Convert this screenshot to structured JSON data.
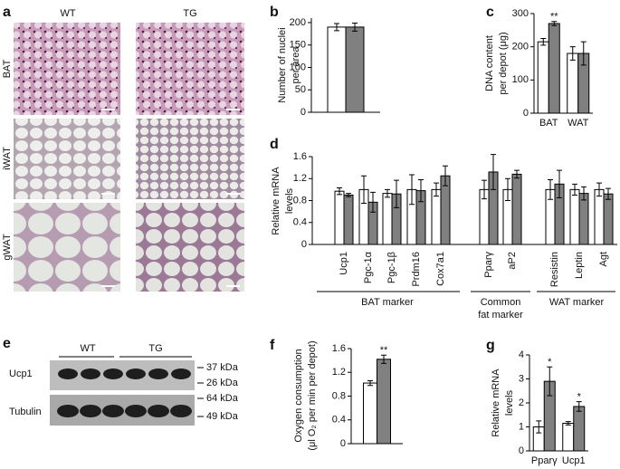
{
  "panel_a": {
    "letter": "a",
    "columns": [
      "WT",
      "TG"
    ],
    "rows": [
      "BAT",
      "iWAT",
      "gWAT"
    ]
  },
  "panel_e": {
    "letter": "e",
    "groups": [
      "WT",
      "TG"
    ],
    "rows": [
      "Ucp1",
      "Tubulin"
    ],
    "markers": [
      "37 kDa",
      "26 kDa",
      "64 kDa",
      "49 kDa"
    ]
  },
  "chart_data": [
    {
      "type": "bar",
      "panel": "b",
      "ylabel": [
        "Number of nuclei",
        "per area"
      ],
      "categories": [
        null
      ],
      "series": [
        {
          "color": "#ffffff",
          "values": [
            190
          ],
          "errors": [
            8
          ]
        },
        {
          "color": "#808080",
          "values": [
            190
          ],
          "errors": [
            9
          ]
        }
      ],
      "ylim": [
        0,
        210
      ],
      "yticks": [
        0,
        50,
        100,
        150,
        200
      ]
    },
    {
      "type": "bar",
      "panel": "c",
      "ylabel": [
        "DNA content",
        "per depot (μg)"
      ],
      "categories": [
        "BAT",
        "WAT"
      ],
      "series": [
        {
          "color": "#ffffff",
          "values": [
            215,
            180
          ],
          "errors": [
            10,
            20
          ]
        },
        {
          "color": "#808080",
          "values": [
            270,
            180
          ],
          "errors": [
            6,
            35
          ],
          "markers": [
            "**",
            null
          ]
        }
      ],
      "ylim": [
        0,
        300
      ],
      "yticks": [
        0,
        100,
        200,
        300
      ]
    },
    {
      "type": "bar",
      "panel": "d",
      "ylabel": [
        "Relative mRNA",
        "levels"
      ],
      "categories": [
        "Ucp1",
        "Pgc-1α",
        "Pgc-1β",
        "Prdm16",
        "Cox7a1",
        "Pparγ",
        "aP2",
        "Resistin",
        "Leptin",
        "Agt"
      ],
      "groups": [
        [
          "BAT marker"
        ],
        [
          "Common",
          "fat marker"
        ],
        [
          "WAT marker"
        ]
      ],
      "series": [
        {
          "color": "#ffffff",
          "values": [
            0.97,
            1.0,
            0.93,
            1.0,
            1.0,
            1.0,
            1.0,
            1.0,
            1.0,
            1.0
          ],
          "errors": [
            0.06,
            0.25,
            0.07,
            0.27,
            0.12,
            0.17,
            0.2,
            0.18,
            0.1,
            0.12
          ]
        },
        {
          "color": "#808080",
          "values": [
            0.9,
            0.77,
            0.92,
            0.98,
            1.25,
            1.32,
            1.28,
            1.1,
            0.93,
            0.92
          ],
          "errors": [
            0.03,
            0.18,
            0.25,
            0.2,
            0.18,
            0.32,
            0.07,
            0.25,
            0.12,
            0.1
          ]
        }
      ],
      "ylim": [
        0,
        1.6
      ],
      "yticks": [
        0,
        0.4,
        0.8,
        1.2,
        1.6
      ]
    },
    {
      "type": "bar",
      "panel": "f",
      "ylabel": [
        "Oxygen consumption",
        "(μl O₂ per min per depot)"
      ],
      "categories": [
        null
      ],
      "series": [
        {
          "color": "#ffffff",
          "values": [
            1.02
          ],
          "errors": [
            0.04
          ]
        },
        {
          "color": "#808080",
          "values": [
            1.42
          ],
          "errors": [
            0.07
          ],
          "markers": [
            "**"
          ]
        }
      ],
      "ylim": [
        0,
        1.6
      ],
      "yticks": [
        0,
        0.4,
        0.8,
        1.2,
        1.6
      ]
    },
    {
      "type": "bar",
      "panel": "g",
      "ylabel": [
        "Relative mRNA",
        "levels"
      ],
      "categories": [
        "Pparγ",
        "Ucp1"
      ],
      "series": [
        {
          "color": "#ffffff",
          "values": [
            1.0,
            1.15
          ],
          "errors": [
            0.25,
            0.07
          ]
        },
        {
          "color": "#808080",
          "values": [
            2.9,
            1.85
          ],
          "errors": [
            0.6,
            0.2
          ],
          "markers": [
            "*",
            "*"
          ]
        }
      ],
      "ylim": [
        0,
        4
      ],
      "yticks": [
        0,
        1,
        2,
        3,
        4
      ]
    }
  ]
}
